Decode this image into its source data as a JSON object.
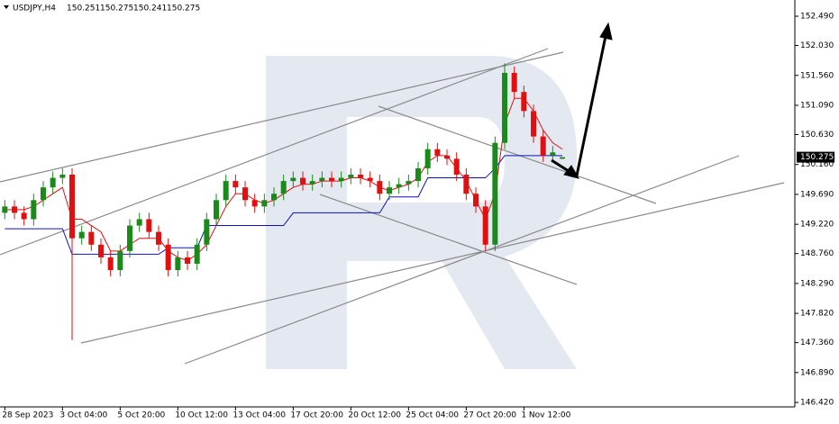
{
  "chart_data": {
    "type": "candlestick",
    "symbol": "USDJPY,H4",
    "header_ohlc": [
      150.251,
      150.275,
      150.241,
      150.275
    ],
    "last_price": 150.275,
    "categories": [
      "28 Sep 2023",
      null,
      null,
      null,
      null,
      null,
      "3 Oct 04:00",
      null,
      null,
      null,
      null,
      null,
      "5 Oct 20:00",
      null,
      null,
      null,
      null,
      null,
      "10 Oct 12:00",
      null,
      null,
      null,
      null,
      null,
      "13 Oct 04:00",
      null,
      null,
      null,
      null,
      null,
      "17 Oct 20:00",
      null,
      null,
      null,
      null,
      null,
      "20 Oct 12:00",
      null,
      null,
      null,
      null,
      null,
      "25 Oct 04:00",
      null,
      null,
      null,
      null,
      null,
      "27 Oct 20:00",
      null,
      null,
      null,
      null,
      null,
      "1 Nov 12:00",
      null,
      null,
      null,
      null
    ],
    "open": [
      149.4,
      149.5,
      149.4,
      149.3,
      149.6,
      149.8,
      149.95,
      150.0,
      149.0,
      149.1,
      148.9,
      148.7,
      148.5,
      148.8,
      149.2,
      149.3,
      149.1,
      148.9,
      148.5,
      148.7,
      148.6,
      148.9,
      149.3,
      149.6,
      149.9,
      149.8,
      149.6,
      149.5,
      149.6,
      149.7,
      149.9,
      149.95,
      149.85,
      149.9,
      149.95,
      149.9,
      149.95,
      150.0,
      149.95,
      149.9,
      149.7,
      149.8,
      149.85,
      149.9,
      150.1,
      150.4,
      150.3,
      150.25,
      150.0,
      149.7,
      149.5,
      148.9,
      150.5,
      151.6,
      151.3,
      151.0,
      150.6,
      150.3,
      150.251
    ],
    "high": [
      149.6,
      149.6,
      149.5,
      149.7,
      149.9,
      150.05,
      150.1,
      150.1,
      149.2,
      149.2,
      149.0,
      148.8,
      148.9,
      149.3,
      149.4,
      149.4,
      149.2,
      149.0,
      148.8,
      148.8,
      149.0,
      149.4,
      149.7,
      150.0,
      150.0,
      149.9,
      149.7,
      149.7,
      149.8,
      150.0,
      150.05,
      150.05,
      150.0,
      150.05,
      150.05,
      150.05,
      150.1,
      150.1,
      150.05,
      150.0,
      149.9,
      149.95,
      150.0,
      150.2,
      150.5,
      150.5,
      150.4,
      150.35,
      150.1,
      149.8,
      149.6,
      150.6,
      151.75,
      151.7,
      151.4,
      151.1,
      150.7,
      150.45,
      150.275
    ],
    "low": [
      149.3,
      149.3,
      149.2,
      149.2,
      149.5,
      149.7,
      149.85,
      147.4,
      148.9,
      148.8,
      148.6,
      148.4,
      148.4,
      148.7,
      149.1,
      149.0,
      148.8,
      148.4,
      148.4,
      148.5,
      148.5,
      148.8,
      149.2,
      149.5,
      149.7,
      149.5,
      149.4,
      149.4,
      149.5,
      149.6,
      149.8,
      149.75,
      149.75,
      149.8,
      149.8,
      149.8,
      149.85,
      149.85,
      149.8,
      149.6,
      149.6,
      149.7,
      149.75,
      149.8,
      150.0,
      150.2,
      150.15,
      149.9,
      149.6,
      149.4,
      148.8,
      148.8,
      150.4,
      151.2,
      150.9,
      150.5,
      150.2,
      150.2,
      150.241
    ],
    "close": [
      149.5,
      149.4,
      149.3,
      149.6,
      149.8,
      149.95,
      150.0,
      149.0,
      149.1,
      148.9,
      148.7,
      148.5,
      148.8,
      149.2,
      149.3,
      149.1,
      148.9,
      148.5,
      148.7,
      148.6,
      148.9,
      149.3,
      149.6,
      149.9,
      149.8,
      149.6,
      149.5,
      149.6,
      149.7,
      149.9,
      149.95,
      149.85,
      149.9,
      149.95,
      149.9,
      149.95,
      150.0,
      149.95,
      149.9,
      149.7,
      149.8,
      149.85,
      149.9,
      150.1,
      150.4,
      150.3,
      150.25,
      150.0,
      149.7,
      149.5,
      148.9,
      150.5,
      151.6,
      151.3,
      151.0,
      150.6,
      150.3,
      150.35,
      150.275
    ],
    "up_color": "#1a8a1a",
    "down_color": "#e01010",
    "lines": [
      {
        "color": "#e01010",
        "values": [
          149.45,
          149.45,
          149.45,
          149.5,
          149.6,
          149.7,
          149.8,
          149.3,
          149.3,
          149.2,
          149.1,
          148.8,
          148.8,
          148.9,
          149.0,
          149.0,
          149.0,
          148.8,
          148.7,
          148.65,
          148.75,
          148.9,
          149.2,
          149.5,
          149.7,
          149.7,
          149.6,
          149.55,
          149.6,
          149.7,
          149.8,
          149.85,
          149.85,
          149.9,
          149.9,
          149.9,
          149.95,
          149.95,
          149.9,
          149.8,
          149.75,
          149.8,
          149.85,
          149.95,
          150.2,
          150.3,
          150.3,
          150.1,
          149.9,
          149.6,
          149.3,
          149.7,
          150.8,
          151.2,
          151.2,
          151.0,
          150.7,
          150.5,
          150.4
        ]
      },
      {
        "color": "#1010c0",
        "values": [
          149.15,
          149.15,
          149.15,
          149.15,
          149.15,
          149.15,
          149.15,
          148.75,
          148.75,
          148.75,
          148.75,
          148.75,
          148.75,
          148.75,
          148.75,
          148.75,
          148.75,
          148.85,
          148.85,
          148.85,
          148.85,
          149.2,
          149.2,
          149.2,
          149.2,
          149.2,
          149.2,
          149.2,
          149.2,
          149.2,
          149.4,
          149.4,
          149.4,
          149.4,
          149.4,
          149.4,
          149.4,
          149.4,
          149.4,
          149.4,
          149.65,
          149.65,
          149.65,
          149.65,
          149.95,
          149.95,
          149.95,
          149.95,
          149.95,
          149.95,
          149.95,
          150.1,
          150.3,
          150.3,
          150.3,
          150.3,
          150.3,
          150.3,
          150.3
        ]
      }
    ],
    "ylim": [
      146.35,
      152.745
    ],
    "yticks": [
      {
        "value": 152.49,
        "label": "152.490"
      },
      {
        "value": 152.03,
        "label": "152.030"
      },
      {
        "value": 151.56,
        "label": "151.560"
      },
      {
        "value": 151.09,
        "label": "151.090"
      },
      {
        "value": 150.63,
        "label": "150.630"
      },
      {
        "value": 150.16,
        "label": "150.160"
      },
      {
        "value": 149.69,
        "label": "149.690"
      },
      {
        "value": 149.22,
        "label": "149.220"
      },
      {
        "value": 148.76,
        "label": "148.760"
      },
      {
        "value": 148.29,
        "label": "148.290"
      },
      {
        "value": 147.82,
        "label": "147.820"
      },
      {
        "value": 147.36,
        "label": "147.360"
      },
      {
        "value": 146.89,
        "label": "146.890"
      },
      {
        "value": 146.42,
        "label": "146.420"
      }
    ],
    "grid": false
  }
}
